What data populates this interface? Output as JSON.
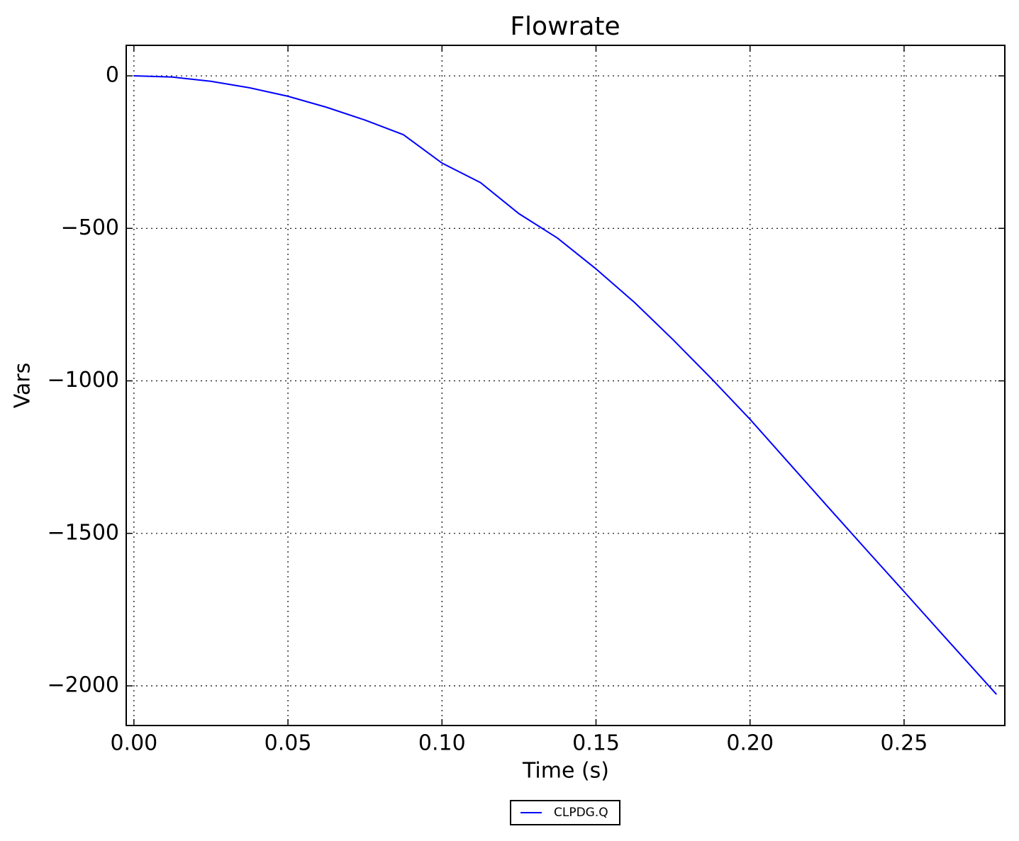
{
  "chart_data": {
    "type": "line",
    "title": "Flowrate",
    "x_label": "Time (s)",
    "y_label": "Vars",
    "x": [
      0,
      0.0125,
      0.025,
      0.0375,
      0.05,
      0.0625,
      0.075,
      0.0875,
      0.1,
      0.1125,
      0.125,
      0.1375,
      0.15,
      0.1625,
      0.175,
      0.1875,
      0.2,
      0.2125,
      0.225,
      0.2375,
      0.25,
      0.2625,
      0.28
    ],
    "series": [
      {
        "name": "CLPDG.Q",
        "color": "#0000ff",
        "values": [
          0,
          -4,
          -18,
          -39,
          -67,
          -103,
          -145,
          -193,
          -286,
          -350,
          -452,
          -532,
          -633,
          -743,
          -865,
          -993,
          -1126,
          -1268,
          -1410,
          -1551,
          -1691,
          -1832,
          -2028
        ]
      }
    ],
    "xlim": [
      -0.0025,
      0.2827
    ],
    "ylim": [
      -2130,
      100
    ],
    "xticks": [
      {
        "value": 0,
        "label": "0.00"
      },
      {
        "value": 0.05,
        "label": "0.05"
      },
      {
        "value": 0.1,
        "label": "0.10"
      },
      {
        "value": 0.15,
        "label": "0.15"
      },
      {
        "value": 0.2,
        "label": "0.20"
      },
      {
        "value": 0.25,
        "label": "0.25"
      }
    ],
    "yticks": [
      0,
      {
        "value": -500,
        "label": "−500"
      },
      {
        "value": -1000,
        "label": "−1000"
      },
      {
        "value": -1500,
        "label": "−1500"
      },
      {
        "value": -2000,
        "label": "−2000"
      }
    ],
    "grid": true,
    "legend": "bottom"
  }
}
